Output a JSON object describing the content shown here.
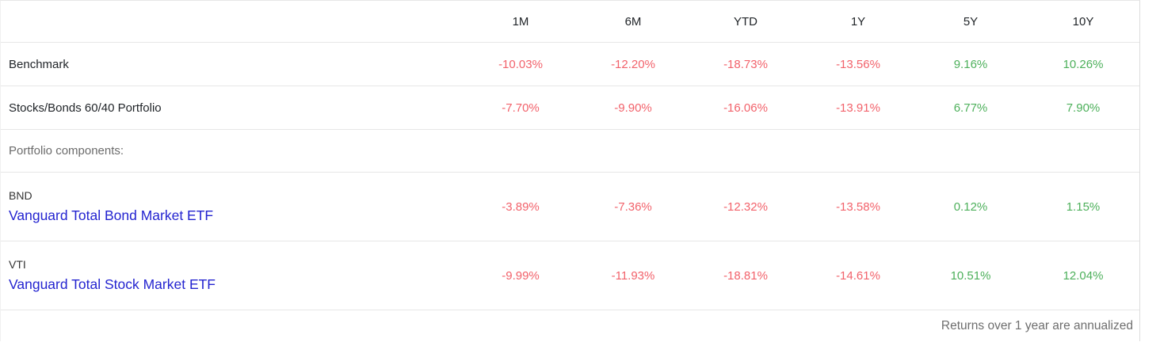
{
  "table": {
    "columns": [
      "1M",
      "6M",
      "YTD",
      "1Y",
      "5Y",
      "10Y"
    ],
    "rows": [
      {
        "name": "Benchmark",
        "values": [
          "-10.03%",
          "-12.20%",
          "-18.73%",
          "-13.56%",
          "9.16%",
          "10.26%"
        ]
      },
      {
        "name": "Stocks/Bonds 60/40 Portfolio",
        "values": [
          "-7.70%",
          "-9.90%",
          "-16.06%",
          "-13.91%",
          "6.77%",
          "7.90%"
        ]
      }
    ],
    "section_label": "Portfolio components:",
    "components": [
      {
        "ticker": "BND",
        "name": "Vanguard Total Bond Market ETF",
        "values": [
          "-3.89%",
          "-7.36%",
          "-12.32%",
          "-13.58%",
          "0.12%",
          "1.15%"
        ]
      },
      {
        "ticker": "VTI",
        "name": "Vanguard Total Stock Market ETF",
        "values": [
          "-9.99%",
          "-11.93%",
          "-18.81%",
          "-14.61%",
          "10.51%",
          "12.04%"
        ]
      }
    ],
    "footer_note": "Returns over 1 year are annualized",
    "colors": {
      "negative": "#f2626b",
      "positive": "#4db05b",
      "link": "#2424d0"
    }
  }
}
